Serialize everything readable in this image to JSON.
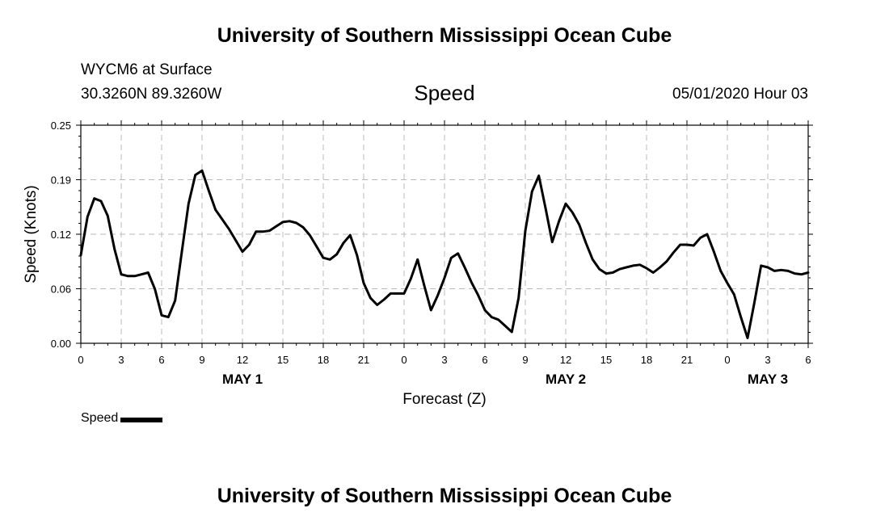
{
  "header": {
    "title": "University of Southern Mississippi Ocean Cube",
    "station": "WYCM6 at Surface",
    "coords": "30.3260N 89.3260W",
    "variable": "Speed",
    "datetime": "05/01/2020 Hour 03"
  },
  "footer": {
    "title": "University of Southern Mississippi Ocean Cube"
  },
  "chart_data": {
    "type": "line",
    "xlabel": "Forecast (Z)",
    "ylabel": "Speed (Knots)",
    "ylim": [
      0,
      0.25
    ],
    "yticks": [
      "0.00",
      "0.06",
      "0.12",
      "0.19",
      "0.25"
    ],
    "xlim": [
      0,
      54
    ],
    "xticks": [
      "0",
      "3",
      "6",
      "9",
      "12",
      "15",
      "18",
      "21",
      "0",
      "3",
      "6",
      "9",
      "12",
      "15",
      "18",
      "21",
      "0",
      "3",
      "6"
    ],
    "day_labels": [
      {
        "label": "MAY 1",
        "hour": 12
      },
      {
        "label": "MAY 2",
        "hour": 36
      },
      {
        "label": "MAY 3",
        "hour": 51
      }
    ],
    "grid": true,
    "legend": "bottom-left",
    "series": [
      {
        "name": "Speed",
        "color": "#000000",
        "x": [
          0,
          0.5,
          1,
          1.5,
          2,
          2.5,
          3,
          3.5,
          4,
          4.5,
          5,
          5.5,
          6,
          6.5,
          7,
          7.5,
          8,
          8.5,
          9,
          9.5,
          10,
          10.5,
          11,
          11.5,
          12,
          12.5,
          13,
          13.5,
          14,
          14.5,
          15,
          15.5,
          16,
          16.5,
          17,
          17.5,
          18,
          18.5,
          19,
          19.5,
          20,
          20.5,
          21,
          21.5,
          22,
          22.5,
          23,
          23.5,
          24,
          24.5,
          25,
          25.5,
          26,
          26.5,
          27,
          27.5,
          28,
          28.5,
          29,
          29.5,
          30,
          30.5,
          31,
          31.5,
          32,
          32.5,
          33,
          33.5,
          34,
          34.5,
          35,
          35.5,
          36,
          36.5,
          37,
          37.5,
          38,
          38.5,
          39,
          39.5,
          40,
          40.5,
          41,
          41.5,
          42,
          42.5,
          43,
          43.5,
          44,
          44.5,
          45,
          45.5,
          46,
          46.5,
          47,
          47.5,
          48,
          48.5,
          49,
          49.5,
          50,
          50.5,
          51,
          51.5,
          52,
          52.5,
          53,
          53.5,
          54
        ],
        "values": [
          0.101,
          0.145,
          0.166,
          0.163,
          0.146,
          0.108,
          0.079,
          0.077,
          0.077,
          0.079,
          0.081,
          0.062,
          0.032,
          0.03,
          0.049,
          0.105,
          0.16,
          0.193,
          0.198,
          0.175,
          0.153,
          0.142,
          0.131,
          0.118,
          0.105,
          0.113,
          0.128,
          0.128,
          0.129,
          0.134,
          0.139,
          0.14,
          0.138,
          0.133,
          0.124,
          0.111,
          0.098,
          0.096,
          0.102,
          0.115,
          0.124,
          0.101,
          0.069,
          0.052,
          0.044,
          0.05,
          0.057,
          0.057,
          0.057,
          0.074,
          0.096,
          0.066,
          0.038,
          0.055,
          0.075,
          0.098,
          0.103,
          0.087,
          0.07,
          0.055,
          0.038,
          0.03,
          0.027,
          0.02,
          0.013,
          0.052,
          0.129,
          0.174,
          0.192,
          0.155,
          0.116,
          0.14,
          0.16,
          0.15,
          0.136,
          0.115,
          0.096,
          0.085,
          0.08,
          0.081,
          0.085,
          0.087,
          0.089,
          0.09,
          0.086,
          0.081,
          0.087,
          0.094,
          0.104,
          0.113,
          0.113,
          0.112,
          0.121,
          0.125,
          0.105,
          0.083,
          0.069,
          0.056,
          0.03,
          0.006,
          0.046,
          0.089,
          0.087,
          0.083,
          0.084,
          0.083,
          0.08,
          0.079,
          0.081
        ]
      }
    ]
  }
}
